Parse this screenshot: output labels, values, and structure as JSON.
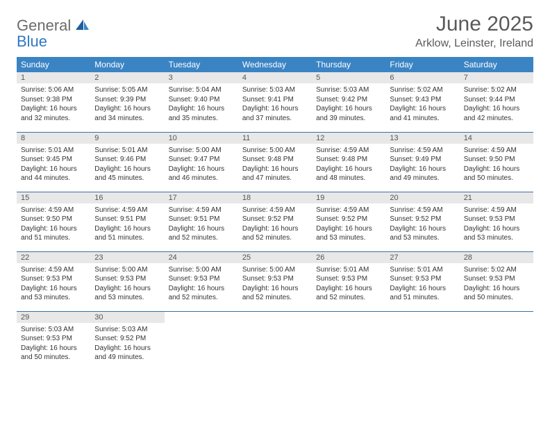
{
  "brand": {
    "part1": "General",
    "part2": "Blue"
  },
  "title": "June 2025",
  "location": "Arklow, Leinster, Ireland",
  "colors": {
    "header_bg": "#3b84c4",
    "header_text": "#ffffff",
    "daynum_bg": "#e8e8e8",
    "row_divider": "#3b6fa0",
    "logo_gray": "#6b6b6b",
    "logo_blue": "#2f78c2",
    "title_color": "#5a5a5a"
  },
  "weekdays": [
    "Sunday",
    "Monday",
    "Tuesday",
    "Wednesday",
    "Thursday",
    "Friday",
    "Saturday"
  ],
  "weeks": [
    [
      {
        "day": "1",
        "sunrise": "5:06 AM",
        "sunset": "9:38 PM",
        "daylight": "16 hours and 32 minutes."
      },
      {
        "day": "2",
        "sunrise": "5:05 AM",
        "sunset": "9:39 PM",
        "daylight": "16 hours and 34 minutes."
      },
      {
        "day": "3",
        "sunrise": "5:04 AM",
        "sunset": "9:40 PM",
        "daylight": "16 hours and 35 minutes."
      },
      {
        "day": "4",
        "sunrise": "5:03 AM",
        "sunset": "9:41 PM",
        "daylight": "16 hours and 37 minutes."
      },
      {
        "day": "5",
        "sunrise": "5:03 AM",
        "sunset": "9:42 PM",
        "daylight": "16 hours and 39 minutes."
      },
      {
        "day": "6",
        "sunrise": "5:02 AM",
        "sunset": "9:43 PM",
        "daylight": "16 hours and 41 minutes."
      },
      {
        "day": "7",
        "sunrise": "5:02 AM",
        "sunset": "9:44 PM",
        "daylight": "16 hours and 42 minutes."
      }
    ],
    [
      {
        "day": "8",
        "sunrise": "5:01 AM",
        "sunset": "9:45 PM",
        "daylight": "16 hours and 44 minutes."
      },
      {
        "day": "9",
        "sunrise": "5:01 AM",
        "sunset": "9:46 PM",
        "daylight": "16 hours and 45 minutes."
      },
      {
        "day": "10",
        "sunrise": "5:00 AM",
        "sunset": "9:47 PM",
        "daylight": "16 hours and 46 minutes."
      },
      {
        "day": "11",
        "sunrise": "5:00 AM",
        "sunset": "9:48 PM",
        "daylight": "16 hours and 47 minutes."
      },
      {
        "day": "12",
        "sunrise": "4:59 AM",
        "sunset": "9:48 PM",
        "daylight": "16 hours and 48 minutes."
      },
      {
        "day": "13",
        "sunrise": "4:59 AM",
        "sunset": "9:49 PM",
        "daylight": "16 hours and 49 minutes."
      },
      {
        "day": "14",
        "sunrise": "4:59 AM",
        "sunset": "9:50 PM",
        "daylight": "16 hours and 50 minutes."
      }
    ],
    [
      {
        "day": "15",
        "sunrise": "4:59 AM",
        "sunset": "9:50 PM",
        "daylight": "16 hours and 51 minutes."
      },
      {
        "day": "16",
        "sunrise": "4:59 AM",
        "sunset": "9:51 PM",
        "daylight": "16 hours and 51 minutes."
      },
      {
        "day": "17",
        "sunrise": "4:59 AM",
        "sunset": "9:51 PM",
        "daylight": "16 hours and 52 minutes."
      },
      {
        "day": "18",
        "sunrise": "4:59 AM",
        "sunset": "9:52 PM",
        "daylight": "16 hours and 52 minutes."
      },
      {
        "day": "19",
        "sunrise": "4:59 AM",
        "sunset": "9:52 PM",
        "daylight": "16 hours and 53 minutes."
      },
      {
        "day": "20",
        "sunrise": "4:59 AM",
        "sunset": "9:52 PM",
        "daylight": "16 hours and 53 minutes."
      },
      {
        "day": "21",
        "sunrise": "4:59 AM",
        "sunset": "9:53 PM",
        "daylight": "16 hours and 53 minutes."
      }
    ],
    [
      {
        "day": "22",
        "sunrise": "4:59 AM",
        "sunset": "9:53 PM",
        "daylight": "16 hours and 53 minutes."
      },
      {
        "day": "23",
        "sunrise": "5:00 AM",
        "sunset": "9:53 PM",
        "daylight": "16 hours and 53 minutes."
      },
      {
        "day": "24",
        "sunrise": "5:00 AM",
        "sunset": "9:53 PM",
        "daylight": "16 hours and 52 minutes."
      },
      {
        "day": "25",
        "sunrise": "5:00 AM",
        "sunset": "9:53 PM",
        "daylight": "16 hours and 52 minutes."
      },
      {
        "day": "26",
        "sunrise": "5:01 AM",
        "sunset": "9:53 PM",
        "daylight": "16 hours and 52 minutes."
      },
      {
        "day": "27",
        "sunrise": "5:01 AM",
        "sunset": "9:53 PM",
        "daylight": "16 hours and 51 minutes."
      },
      {
        "day": "28",
        "sunrise": "5:02 AM",
        "sunset": "9:53 PM",
        "daylight": "16 hours and 50 minutes."
      }
    ],
    [
      {
        "day": "29",
        "sunrise": "5:03 AM",
        "sunset": "9:53 PM",
        "daylight": "16 hours and 50 minutes."
      },
      {
        "day": "30",
        "sunrise": "5:03 AM",
        "sunset": "9:52 PM",
        "daylight": "16 hours and 49 minutes."
      },
      null,
      null,
      null,
      null,
      null
    ]
  ],
  "labels": {
    "sunrise": "Sunrise: ",
    "sunset": "Sunset: ",
    "daylight": "Daylight: "
  }
}
